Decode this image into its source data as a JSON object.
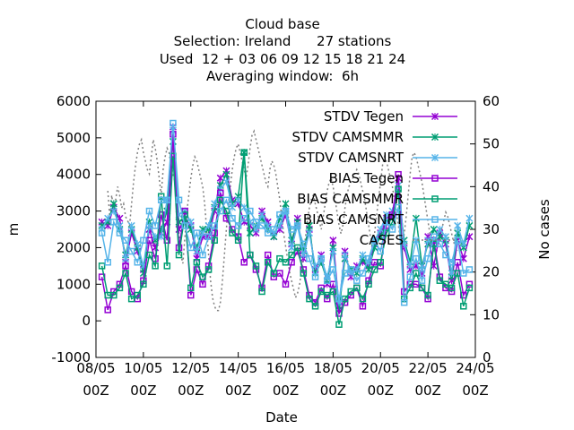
{
  "chart_data": {
    "type": "line",
    "title_lines": [
      "Cloud base",
      "Selection: Ireland      27 stations",
      "Used  12 + 03 06 09 12 15 18 21 24",
      "Averaging window:  6h"
    ],
    "xlabel": "Date",
    "ylabel": "m",
    "y2label": "No cases",
    "x_range": [
      "2023-05-08T00:00",
      "2023-05-24T00:00"
    ],
    "x_ticks": [
      {
        "date": "2023-05-08T00:00",
        "label1": "08/05",
        "label2": "00Z"
      },
      {
        "date": "2023-05-10T00:00",
        "label1": "10/05",
        "label2": "00Z"
      },
      {
        "date": "2023-05-12T00:00",
        "label1": "12/05",
        "label2": "00Z"
      },
      {
        "date": "2023-05-14T00:00",
        "label1": "14/05",
        "label2": "00Z"
      },
      {
        "date": "2023-05-16T00:00",
        "label1": "16/05",
        "label2": "00Z"
      },
      {
        "date": "2023-05-18T00:00",
        "label1": "18/05",
        "label2": "00Z"
      },
      {
        "date": "2023-05-20T00:00",
        "label1": "20/05",
        "label2": "00Z"
      },
      {
        "date": "2023-05-22T00:00",
        "label1": "22/05",
        "label2": "00Z"
      },
      {
        "date": "2023-05-24T00:00",
        "label1": "24/05",
        "label2": "00Z"
      }
    ],
    "ylim": [
      -1000,
      6000
    ],
    "y_ticks": [
      -1000,
      0,
      1000,
      2000,
      3000,
      4000,
      5000,
      6000
    ],
    "y2lim": [
      0,
      60
    ],
    "y2_ticks": [
      0,
      10,
      20,
      30,
      40,
      50,
      60
    ],
    "legend_position": "top-right",
    "series_x": [
      "2023-05-08T06:00",
      "2023-05-08T12:00",
      "2023-05-08T18:00",
      "2023-05-09T00:00",
      "2023-05-09T06:00",
      "2023-05-09T12:00",
      "2023-05-09T18:00",
      "2023-05-10T00:00",
      "2023-05-10T06:00",
      "2023-05-10T12:00",
      "2023-05-10T18:00",
      "2023-05-11T00:00",
      "2023-05-11T06:00",
      "2023-05-11T12:00",
      "2023-05-11T18:00",
      "2023-05-12T00:00",
      "2023-05-12T06:00",
      "2023-05-12T12:00",
      "2023-05-12T18:00",
      "2023-05-13T00:00",
      "2023-05-13T06:00",
      "2023-05-13T12:00",
      "2023-05-13T18:00",
      "2023-05-14T00:00",
      "2023-05-14T06:00",
      "2023-05-14T12:00",
      "2023-05-14T18:00",
      "2023-05-15T00:00",
      "2023-05-15T06:00",
      "2023-05-15T12:00",
      "2023-05-15T18:00",
      "2023-05-16T00:00",
      "2023-05-16T06:00",
      "2023-05-16T12:00",
      "2023-05-16T18:00",
      "2023-05-17T00:00",
      "2023-05-17T06:00",
      "2023-05-17T12:00",
      "2023-05-17T18:00",
      "2023-05-18T00:00",
      "2023-05-18T06:00",
      "2023-05-18T12:00",
      "2023-05-18T18:00",
      "2023-05-19T00:00",
      "2023-05-19T06:00",
      "2023-05-19T12:00",
      "2023-05-19T18:00",
      "2023-05-20T00:00",
      "2023-05-20T06:00",
      "2023-05-20T12:00",
      "2023-05-20T18:00",
      "2023-05-21T00:00",
      "2023-05-21T06:00",
      "2023-05-21T12:00",
      "2023-05-21T18:00",
      "2023-05-22T00:00",
      "2023-05-22T06:00",
      "2023-05-22T12:00",
      "2023-05-22T18:00",
      "2023-05-23T00:00",
      "2023-05-23T06:00",
      "2023-05-23T12:00",
      "2023-05-23T18:00"
    ],
    "series": [
      {
        "name": "STDV Tegen",
        "color": "#9400d3",
        "marker": "x",
        "axis": "y1",
        "values": [
          2700,
          2600,
          3100,
          2800,
          1600,
          2400,
          1900,
          1400,
          2500,
          2000,
          2400,
          2700,
          5300,
          2500,
          2800,
          2600,
          1700,
          2300,
          2300,
          3000,
          3900,
          4100,
          3300,
          3200,
          2700,
          2600,
          2400,
          3000,
          2700,
          2300,
          2500,
          2900,
          2100,
          2800,
          1700,
          2500,
          1400,
          1800,
          1000,
          2200,
          400,
          1900,
          1200,
          1500,
          1600,
          1500,
          2100,
          2400,
          2800,
          2900,
          3900,
          2000,
          1400,
          1500,
          1300,
          2300,
          1500,
          2400,
          2100,
          1100,
          2200,
          1700,
          2300
        ]
      },
      {
        "name": "STDV CAMSMMR",
        "color": "#009e73",
        "marker": "x",
        "axis": "y1",
        "values": [
          2600,
          2700,
          3200,
          2500,
          1800,
          2500,
          2000,
          1300,
          2700,
          2200,
          2500,
          3000,
          4900,
          2700,
          2800,
          2500,
          2000,
          2500,
          2500,
          3100,
          3700,
          4000,
          3200,
          3400,
          4600,
          2400,
          2600,
          2800,
          2500,
          2300,
          2800,
          3200,
          2200,
          2700,
          1900,
          2600,
          1300,
          1600,
          1100,
          2000,
          300,
          1700,
          1400,
          1300,
          1700,
          1400,
          2000,
          2300,
          2700,
          2800,
          3500,
          2200,
          1600,
          2800,
          1500,
          2100,
          2500,
          2300,
          2200,
          1200,
          2400,
          2000,
          2600
        ]
      },
      {
        "name": "STDV CAMSNRT",
        "color": "#56b4e9",
        "marker": "x",
        "axis": "y1",
        "values": [
          2500,
          2800,
          3000,
          2600,
          1700,
          2600,
          2100,
          1500,
          2600,
          2300,
          2300,
          3300,
          5200,
          2900,
          3000,
          2700,
          1900,
          2400,
          2600,
          3200,
          3600,
          3800,
          3100,
          3300,
          3100,
          2700,
          2500,
          2900,
          2600,
          2400,
          2600,
          3000,
          2000,
          2600,
          1800,
          2400,
          1500,
          1700,
          1200,
          1900,
          500,
          1800,
          1300,
          1400,
          1800,
          1600,
          2200,
          2500,
          2900,
          3000,
          3700,
          2100,
          1500,
          2200,
          1400,
          2200,
          2100,
          2500,
          2300,
          1300,
          2600,
          2100,
          2800
        ]
      },
      {
        "name": "BIAS Tegen",
        "color": "#9400d3",
        "marker": "square",
        "axis": "y1",
        "values": [
          1200,
          300,
          800,
          1000,
          1500,
          800,
          600,
          1100,
          2200,
          1700,
          2900,
          2200,
          5100,
          2000,
          3000,
          700,
          1400,
          1000,
          1500,
          2400,
          3500,
          2800,
          2500,
          2300,
          1600,
          1800,
          1400,
          900,
          1800,
          1200,
          1300,
          1000,
          1600,
          1900,
          1400,
          700,
          500,
          900,
          600,
          1000,
          200,
          500,
          700,
          900,
          400,
          1100,
          1600,
          1500,
          2600,
          2900,
          4000,
          800,
          1000,
          1000,
          900,
          600,
          2200,
          1200,
          900,
          800,
          1600,
          700,
          1000
        ]
      },
      {
        "name": "BIAS CAMSMMR",
        "color": "#009e73",
        "marker": "square",
        "axis": "y1",
        "values": [
          1500,
          700,
          700,
          900,
          1300,
          600,
          700,
          1000,
          1800,
          1500,
          3400,
          1500,
          4500,
          1800,
          2900,
          900,
          1600,
          1200,
          1400,
          2200,
          3300,
          3000,
          2400,
          2200,
          4600,
          1800,
          1500,
          800,
          1600,
          1300,
          1700,
          1600,
          1800,
          2000,
          1300,
          600,
          400,
          800,
          700,
          800,
          -100,
          600,
          800,
          900,
          600,
          1000,
          1400,
          1600,
          2400,
          2700,
          3600,
          600,
          900,
          1300,
          900,
          700,
          2100,
          1100,
          1000,
          900,
          1300,
          400,
          900
        ]
      },
      {
        "name": "BIAS CAMSNRT",
        "color": "#56b4e9",
        "marker": "square",
        "axis": "y1",
        "values": [
          2400,
          1600,
          2700,
          2400,
          2200,
          1900,
          1600,
          2200,
          3000,
          2600,
          3300,
          3300,
          5400,
          3300,
          2600,
          2000,
          2400,
          1800,
          2300,
          2600,
          3000,
          3300,
          2800,
          2600,
          2800,
          3000,
          2700,
          2600,
          2400,
          2500,
          2900,
          3000,
          2500,
          2600,
          2100,
          1700,
          1200,
          1700,
          1100,
          1400,
          600,
          1300,
          1400,
          1100,
          1300,
          1700,
          2200,
          1900,
          2700,
          2500,
          3100,
          500,
          1200,
          1700,
          1100,
          1700,
          2300,
          2100,
          1800,
          1600,
          2200,
          1300,
          1400
        ]
      }
    ],
    "cases": {
      "name": "CASES",
      "color": "#808080",
      "axis": "y2",
      "x_start": "2023-05-08T12:00",
      "step_hours": 2,
      "values": [
        39,
        33,
        38,
        34,
        37,
        40,
        38,
        35,
        36,
        33,
        32,
        31,
        36,
        41,
        45,
        48,
        50,
        51,
        48,
        46,
        44,
        43,
        47,
        51,
        49,
        46,
        42,
        38,
        44,
        47,
        49,
        48,
        45,
        43,
        41,
        35,
        29,
        24,
        22,
        28,
        34,
        38,
        42,
        45,
        47,
        46,
        44,
        42,
        40,
        36,
        30,
        24,
        18,
        14,
        12,
        11,
        11,
        13,
        18,
        24,
        30,
        36,
        40,
        44,
        47,
        49,
        50,
        48,
        46,
        44,
        42,
        45,
        49,
        52,
        53,
        51,
        49,
        47,
        45,
        43,
        41,
        40,
        44,
        46,
        45,
        43,
        40,
        37,
        33,
        29,
        26,
        23,
        20,
        18,
        16,
        14,
        15,
        17,
        20,
        24,
        28,
        32,
        35,
        37,
        38,
        36,
        34,
        32,
        30,
        33,
        36,
        39,
        41,
        42,
        40,
        37,
        34,
        31,
        29,
        31,
        35,
        38,
        40,
        41,
        42,
        43,
        44,
        43,
        41,
        39,
        37,
        34,
        31,
        28,
        27,
        29,
        33,
        37,
        41,
        45,
        47,
        46,
        44,
        42,
        40,
        37,
        34,
        31,
        28,
        26,
        29,
        33,
        38,
        43,
        47,
        48,
        47,
        45,
        43,
        41,
        38,
        35,
        32,
        29,
        27,
        25,
        24,
        26,
        28,
        30,
        32,
        34,
        33,
        31,
        29,
        27,
        26,
        25
      ]
    }
  }
}
